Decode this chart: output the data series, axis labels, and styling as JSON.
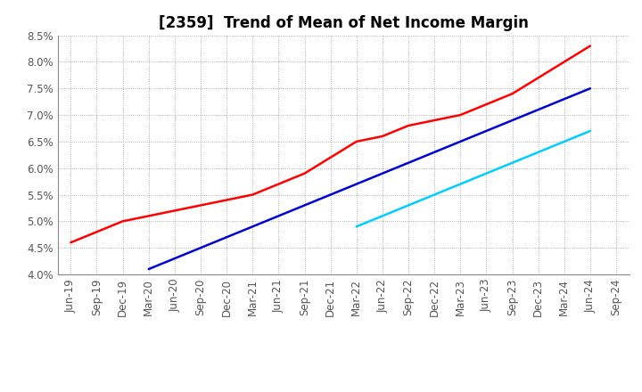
{
  "title": "[2359]  Trend of Mean of Net Income Margin",
  "x_labels": [
    "Jun-19",
    "Sep-19",
    "Dec-19",
    "Mar-20",
    "Jun-20",
    "Sep-20",
    "Dec-20",
    "Mar-21",
    "Jun-21",
    "Sep-21",
    "Dec-21",
    "Mar-22",
    "Jun-22",
    "Sep-22",
    "Dec-22",
    "Mar-23",
    "Jun-23",
    "Sep-23",
    "Dec-23",
    "Mar-24",
    "Jun-24",
    "Sep-24"
  ],
  "series": {
    "3 Years": {
      "color": "#FF0000",
      "data": [
        0.046,
        0.048,
        0.05,
        0.051,
        0.052,
        0.053,
        0.054,
        0.055,
        0.057,
        0.059,
        0.062,
        0.065,
        0.066,
        0.068,
        0.069,
        0.07,
        0.072,
        0.074,
        0.077,
        0.08,
        0.083,
        null
      ]
    },
    "5 Years": {
      "color": "#0000CC",
      "data": [
        null,
        null,
        null,
        0.041,
        0.043,
        0.045,
        0.047,
        0.049,
        0.051,
        0.053,
        0.055,
        0.057,
        0.059,
        0.061,
        0.063,
        0.065,
        0.067,
        0.069,
        0.071,
        0.073,
        0.075,
        null
      ]
    },
    "7 Years": {
      "color": "#00CCFF",
      "data": [
        null,
        null,
        null,
        null,
        null,
        null,
        null,
        null,
        null,
        null,
        null,
        0.049,
        0.051,
        0.053,
        0.055,
        0.057,
        0.059,
        0.061,
        0.063,
        0.065,
        0.067,
        null
      ]
    },
    "10 Years": {
      "color": "#008000",
      "data": [
        null,
        null,
        null,
        null,
        null,
        null,
        null,
        null,
        null,
        null,
        null,
        null,
        null,
        null,
        null,
        null,
        null,
        null,
        null,
        null,
        null,
        null
      ]
    }
  },
  "ylim": [
    0.04,
    0.085
  ],
  "yticks": [
    0.04,
    0.045,
    0.05,
    0.055,
    0.06,
    0.065,
    0.07,
    0.075,
    0.08,
    0.085
  ],
  "ytick_labels": [
    "4.0%",
    "4.5%",
    "5.0%",
    "5.5%",
    "6.0%",
    "6.5%",
    "7.0%",
    "7.5%",
    "8.0%",
    "8.5%"
  ],
  "background_color": "#FFFFFF",
  "grid_color": "#999999",
  "title_fontsize": 12,
  "legend_fontsize": 10,
  "tick_fontsize": 8.5
}
